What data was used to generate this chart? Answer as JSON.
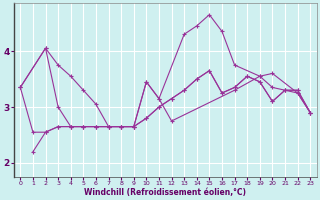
{
  "xlabel": "Windchill (Refroidissement éolien,°C)",
  "xlim": [
    -0.5,
    23.5
  ],
  "ylim": [
    1.75,
    4.85
  ],
  "yticks": [
    2,
    3,
    4
  ],
  "xticks": [
    0,
    1,
    2,
    3,
    4,
    5,
    6,
    7,
    8,
    9,
    10,
    11,
    12,
    13,
    14,
    15,
    16,
    17,
    18,
    19,
    20,
    21,
    22,
    23
  ],
  "bg_color": "#cff0f0",
  "grid_color": "#aadddd",
  "line_color": "#993399",
  "lines": [
    {
      "x": [
        0,
        2,
        3,
        4,
        5,
        6,
        7,
        8,
        9,
        10,
        11,
        13,
        14,
        15,
        16,
        17,
        19,
        20,
        22,
        23
      ],
      "y": [
        3.35,
        4.05,
        3.75,
        3.55,
        3.3,
        3.05,
        2.65,
        2.65,
        2.65,
        3.45,
        3.15,
        4.3,
        4.45,
        4.65,
        4.35,
        3.75,
        3.55,
        3.6,
        3.25,
        2.9
      ]
    },
    {
      "x": [
        0,
        2,
        3,
        4,
        5,
        6,
        7,
        8,
        9,
        10,
        11,
        12,
        17,
        19,
        20,
        21,
        22,
        23
      ],
      "y": [
        3.35,
        4.05,
        3.0,
        2.65,
        2.65,
        2.65,
        2.65,
        2.65,
        2.65,
        3.45,
        3.15,
        2.75,
        3.3,
        3.55,
        3.35,
        3.3,
        3.25,
        2.9
      ]
    },
    {
      "x": [
        0,
        1,
        2,
        3,
        4,
        5,
        6,
        7,
        8,
        9,
        10,
        11,
        12,
        13,
        14,
        15,
        16,
        17,
        18,
        19,
        20,
        21,
        22,
        23
      ],
      "y": [
        3.35,
        2.55,
        2.55,
        2.65,
        2.65,
        2.65,
        2.65,
        2.65,
        2.65,
        2.65,
        2.8,
        3.0,
        3.15,
        3.3,
        3.5,
        3.65,
        3.25,
        3.35,
        3.55,
        3.45,
        3.1,
        3.3,
        3.3,
        2.9
      ]
    },
    {
      "x": [
        1,
        2,
        3,
        4,
        5,
        6,
        7,
        8,
        9,
        10,
        11,
        12,
        13,
        14,
        15,
        16,
        17,
        18,
        19,
        20,
        21,
        22,
        23
      ],
      "y": [
        2.2,
        2.55,
        2.65,
        2.65,
        2.65,
        2.65,
        2.65,
        2.65,
        2.65,
        2.8,
        3.0,
        3.15,
        3.3,
        3.5,
        3.65,
        3.25,
        3.35,
        3.55,
        3.45,
        3.1,
        3.3,
        3.3,
        2.9
      ]
    }
  ]
}
